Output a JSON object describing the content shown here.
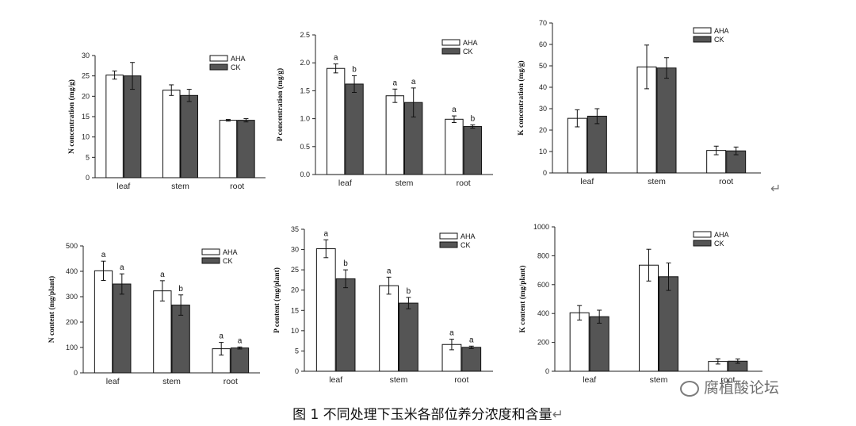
{
  "figure": {
    "caption": "图 1  不同处理下玉米各部位养分浓度和含量",
    "caption_mark": "↵",
    "top_row_mark": "↵",
    "watermark": "腐植酸论坛",
    "colors": {
      "AHA": "#ffffff",
      "CK": "#555555",
      "axis": "#222222"
    }
  },
  "chart_data": [
    {
      "type": "bar",
      "categories": [
        "leaf",
        "stem",
        "root"
      ],
      "ylabel": "N concentration (mg/g)",
      "ylim": [
        0,
        30
      ],
      "yticks": [
        0,
        5,
        10,
        15,
        20,
        25,
        30
      ],
      "legend_position": "top-right",
      "series": [
        {
          "name": "AHA",
          "values": [
            25.2,
            21.5,
            14.1
          ],
          "errors": [
            1.0,
            1.3,
            0.2
          ]
        },
        {
          "name": "CK",
          "values": [
            25.0,
            20.2,
            14.1
          ],
          "errors": [
            3.3,
            1.5,
            0.4
          ]
        }
      ]
    },
    {
      "type": "bar",
      "categories": [
        "leaf",
        "stem",
        "root"
      ],
      "ylabel": "P concentration (mg/g)",
      "ylim": [
        0,
        2.5
      ],
      "yticks": [
        0.0,
        0.5,
        1.0,
        1.5,
        2.0,
        2.5
      ],
      "legend_position": "top-right",
      "series": [
        {
          "name": "AHA",
          "values": [
            1.9,
            1.41,
            0.99
          ],
          "errors": [
            0.08,
            0.12,
            0.06
          ],
          "labels": [
            "a",
            "a",
            "a"
          ]
        },
        {
          "name": "CK",
          "values": [
            1.62,
            1.29,
            0.86
          ],
          "errors": [
            0.15,
            0.26,
            0.03
          ],
          "labels": [
            "b",
            "a",
            "b"
          ]
        }
      ]
    },
    {
      "type": "bar",
      "categories": [
        "leaf",
        "stem",
        "root"
      ],
      "ylabel": "K concentration (mg/g)",
      "ylim": [
        0,
        70
      ],
      "yticks": [
        0,
        10,
        20,
        30,
        40,
        50,
        60,
        70
      ],
      "legend_position": "top-right",
      "series": [
        {
          "name": "AHA",
          "values": [
            25.5,
            49.5,
            10.5
          ],
          "errors": [
            4.0,
            10.2,
            2.0
          ]
        },
        {
          "name": "CK",
          "values": [
            26.5,
            49.0,
            10.3
          ],
          "errors": [
            3.5,
            4.8,
            1.8
          ]
        }
      ]
    },
    {
      "type": "bar",
      "categories": [
        "leaf",
        "stem",
        "root"
      ],
      "ylabel": "N content  (mg/plant)",
      "ylim": [
        0,
        500
      ],
      "yticks": [
        0,
        100,
        200,
        300,
        400,
        500
      ],
      "legend_position": "top-right",
      "series": [
        {
          "name": "AHA",
          "values": [
            402,
            323,
            95
          ],
          "errors": [
            38,
            40,
            25
          ],
          "labels": [
            "a",
            "a",
            "a"
          ]
        },
        {
          "name": "CK",
          "values": [
            350,
            267,
            98
          ],
          "errors": [
            40,
            40,
            4
          ],
          "labels": [
            "a",
            "b",
            "a"
          ]
        }
      ]
    },
    {
      "type": "bar",
      "categories": [
        "leaf",
        "stem",
        "root"
      ],
      "ylabel": "P content  (mg/plant)",
      "ylim": [
        0,
        35
      ],
      "yticks": [
        0,
        5,
        10,
        15,
        20,
        25,
        30,
        35
      ],
      "legend_position": "top-right",
      "series": [
        {
          "name": "AHA",
          "values": [
            30.2,
            21.1,
            6.6
          ],
          "errors": [
            2.2,
            2.1,
            1.3
          ],
          "labels": [
            "a",
            "a",
            "a"
          ]
        },
        {
          "name": "CK",
          "values": [
            22.8,
            16.8,
            5.9
          ],
          "errors": [
            2.2,
            1.4,
            0.3
          ],
          "labels": [
            "b",
            "b",
            "a"
          ]
        }
      ]
    },
    {
      "type": "bar",
      "categories": [
        "leaf",
        "stem",
        "root"
      ],
      "ylabel": "K content  (mg/plant)",
      "ylim": [
        0,
        1000
      ],
      "yticks": [
        0,
        200,
        400,
        600,
        800,
        1000
      ],
      "legend_position": "top-right",
      "series": [
        {
          "name": "AHA",
          "values": [
            405,
            735,
            68
          ],
          "errors": [
            50,
            110,
            18
          ]
        },
        {
          "name": "CK",
          "values": [
            378,
            655,
            70
          ],
          "errors": [
            45,
            95,
            15
          ]
        }
      ]
    }
  ]
}
